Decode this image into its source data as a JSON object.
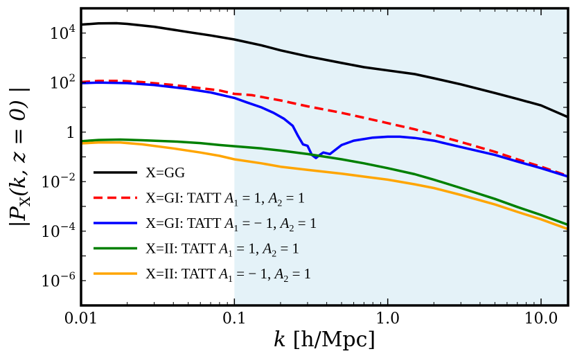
{
  "chart_data": {
    "type": "line",
    "xscale": "log",
    "yscale": "log",
    "xlim": [
      0.01,
      15
    ],
    "ylim": [
      1e-07,
      100000.0
    ],
    "shaded_region": {
      "x_from": 0.1,
      "x_to": 15,
      "color": "#e4f2f8"
    },
    "xticks": [
      0.01,
      0.1,
      1,
      10
    ],
    "xtick_labels": [
      "0.01",
      "0.1",
      "1.0",
      "10.0"
    ],
    "yticks": [
      {
        "value": 1e-06,
        "base": "10",
        "exp": "−6"
      },
      {
        "value": 0.0001,
        "base": "10",
        "exp": "−4"
      },
      {
        "value": 0.01,
        "base": "10",
        "exp": "−2"
      },
      {
        "value": 1,
        "base": "1",
        "exp": ""
      },
      {
        "value": 100,
        "base": "10",
        "exp": "2"
      },
      {
        "value": 10000,
        "base": "10",
        "exp": "4"
      }
    ],
    "xlabel": {
      "var": "k",
      "units": "[h/Mpc]"
    },
    "ylabel": {
      "text": "|P",
      "sub": "X",
      "args": "(k, z = 0) |"
    },
    "series": [
      {
        "name": "X=GG",
        "color": "#000000",
        "dash": "solid",
        "points": [
          [
            0.01,
            22000
          ],
          [
            0.013,
            24500
          ],
          [
            0.017,
            25000
          ],
          [
            0.02,
            23500
          ],
          [
            0.03,
            18000
          ],
          [
            0.05,
            11000
          ],
          [
            0.07,
            8000
          ],
          [
            0.1,
            5500
          ],
          [
            0.15,
            3200
          ],
          [
            0.2,
            2000
          ],
          [
            0.3,
            1150
          ],
          [
            0.5,
            620
          ],
          [
            0.7,
            420
          ],
          [
            1,
            310
          ],
          [
            1.5,
            220
          ],
          [
            2,
            150
          ],
          [
            3,
            85
          ],
          [
            5,
            38
          ],
          [
            7,
            22
          ],
          [
            10,
            12
          ],
          [
            15,
            4
          ]
        ]
      },
      {
        "name": "X=GI: TATT A1=1,A2=1",
        "color": "#ff0000",
        "dash": "dashed",
        "points": [
          [
            0.01,
            105
          ],
          [
            0.013,
            117
          ],
          [
            0.018,
            118
          ],
          [
            0.025,
            105
          ],
          [
            0.04,
            80
          ],
          [
            0.06,
            60
          ],
          [
            0.08,
            48
          ],
          [
            0.1,
            35
          ],
          [
            0.13,
            31
          ],
          [
            0.2,
            19
          ],
          [
            0.3,
            11
          ],
          [
            0.5,
            6
          ],
          [
            0.7,
            3.8
          ],
          [
            1,
            2.3
          ],
          [
            1.5,
            1.3
          ],
          [
            2,
            0.8
          ],
          [
            3,
            0.4
          ],
          [
            5,
            0.16
          ],
          [
            7,
            0.08
          ],
          [
            10,
            0.04
          ],
          [
            15,
            0.017
          ]
        ]
      },
      {
        "name": "X=GI: TATT A1=−1,A2=1",
        "color": "#0000ff",
        "dash": "solid",
        "points": [
          [
            0.01,
            95
          ],
          [
            0.013,
            100
          ],
          [
            0.02,
            95
          ],
          [
            0.03,
            80
          ],
          [
            0.05,
            55
          ],
          [
            0.07,
            40
          ],
          [
            0.1,
            24
          ],
          [
            0.12,
            16
          ],
          [
            0.15,
            10
          ],
          [
            0.18,
            6
          ],
          [
            0.21,
            3.5
          ],
          [
            0.24,
            1.8
          ],
          [
            0.26,
            0.7
          ],
          [
            0.28,
            0.32
          ],
          [
            0.3,
            0.28
          ],
          [
            0.32,
            0.12
          ],
          [
            0.34,
            0.09
          ],
          [
            0.36,
            0.12
          ],
          [
            0.38,
            0.15
          ],
          [
            0.42,
            0.13
          ],
          [
            0.5,
            0.3
          ],
          [
            0.6,
            0.45
          ],
          [
            0.8,
            0.6
          ],
          [
            1,
            0.65
          ],
          [
            1.2,
            0.65
          ],
          [
            1.5,
            0.58
          ],
          [
            2,
            0.45
          ],
          [
            3,
            0.25
          ],
          [
            5,
            0.12
          ],
          [
            7,
            0.065
          ],
          [
            10,
            0.035
          ],
          [
            15,
            0.016
          ]
        ]
      },
      {
        "name": "X=II: TATT A1=1,A2=1",
        "color": "#008000",
        "dash": "solid",
        "points": [
          [
            0.01,
            0.43
          ],
          [
            0.013,
            0.48
          ],
          [
            0.018,
            0.5
          ],
          [
            0.025,
            0.47
          ],
          [
            0.04,
            0.42
          ],
          [
            0.06,
            0.36
          ],
          [
            0.08,
            0.3
          ],
          [
            0.1,
            0.27
          ],
          [
            0.15,
            0.22
          ],
          [
            0.2,
            0.18
          ],
          [
            0.3,
            0.13
          ],
          [
            0.5,
            0.08
          ],
          [
            0.7,
            0.055
          ],
          [
            1,
            0.035
          ],
          [
            1.5,
            0.02
          ],
          [
            2,
            0.012
          ],
          [
            3,
            0.0055
          ],
          [
            5,
            0.002
          ],
          [
            7,
            0.00095
          ],
          [
            10,
            0.00045
          ],
          [
            15,
            0.00018
          ]
        ]
      },
      {
        "name": "X=II: TATT A1=−1,A2=1",
        "color": "#ffa500",
        "dash": "solid",
        "points": [
          [
            0.01,
            0.35
          ],
          [
            0.013,
            0.38
          ],
          [
            0.018,
            0.38
          ],
          [
            0.025,
            0.32
          ],
          [
            0.04,
            0.22
          ],
          [
            0.06,
            0.15
          ],
          [
            0.08,
            0.11
          ],
          [
            0.1,
            0.08
          ],
          [
            0.15,
            0.055
          ],
          [
            0.2,
            0.04
          ],
          [
            0.3,
            0.03
          ],
          [
            0.5,
            0.021
          ],
          [
            0.7,
            0.016
          ],
          [
            1,
            0.012
          ],
          [
            1.5,
            0.0078
          ],
          [
            2,
            0.0055
          ],
          [
            3,
            0.0029
          ],
          [
            5,
            0.0012
          ],
          [
            7,
            0.0006
          ],
          [
            10,
            0.0003
          ],
          [
            15,
            0.00012
          ]
        ]
      }
    ],
    "legend": {
      "placement": "lower-left",
      "entries": [
        {
          "prefix": "X=GG",
          "math": []
        },
        {
          "prefix": "X=GI: TATT ",
          "math": [
            [
              "A",
              "1",
              " = 1, "
            ],
            [
              "A",
              "2",
              " = 1"
            ]
          ]
        },
        {
          "prefix": "X=GI: TATT ",
          "math": [
            [
              "A",
              "1",
              " = − 1, "
            ],
            [
              "A",
              "2",
              " = 1"
            ]
          ]
        },
        {
          "prefix": "X=II: TATT ",
          "math": [
            [
              "A",
              "1",
              " = 1, "
            ],
            [
              "A",
              "2",
              " = 1"
            ]
          ]
        },
        {
          "prefix": "X=II: TATT ",
          "math": [
            [
              "A",
              "1",
              " = − 1, "
            ],
            [
              "A",
              "2",
              " = 1"
            ]
          ]
        }
      ]
    }
  }
}
